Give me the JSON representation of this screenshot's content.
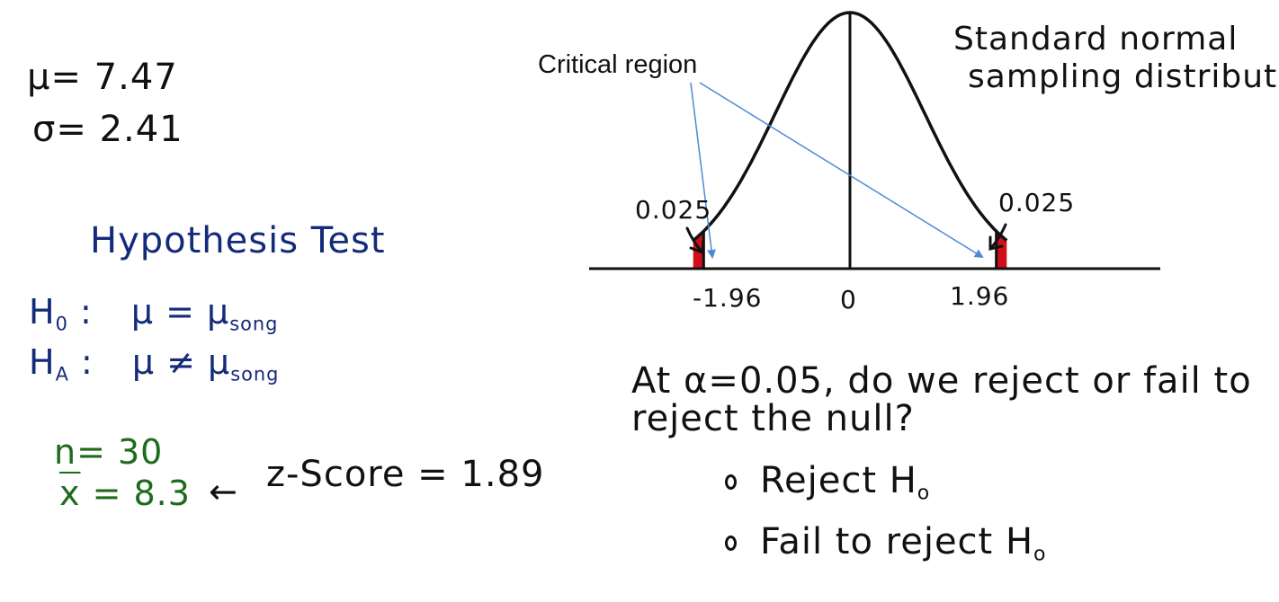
{
  "given": {
    "mu": "μ= 7.47",
    "sigma": "σ= 2.41"
  },
  "hypothesis": {
    "title": "Hypothesis Test",
    "h0_label": "H",
    "h0_sub": "0",
    "h0_colon": ":",
    "h0_expr": "μ = μ",
    "h0_expr_sub": "song",
    "ha_label": "H",
    "ha_sub": "A",
    "ha_colon": ":",
    "ha_expr": "μ ≠ μ",
    "ha_expr_sub": "song"
  },
  "sample": {
    "n": "n= 30",
    "xbar_symbol": "x",
    "xbar_value": " = 8.3",
    "arrow": "←",
    "zscore": "z-Score = 1.89"
  },
  "diagram": {
    "title_line1": "Standard normal",
    "title_line2": "sampling distribution",
    "critical_label": "Critical region",
    "left_tail_area": "0.025",
    "right_tail_area": "0.025",
    "left_tick": "-1.96",
    "center_tick": "0",
    "right_tick": "1.96",
    "critical_z": 1.96,
    "tail_color": "#d10f1b",
    "arrow_color": "#4a8bd6"
  },
  "question": {
    "line1": "At α=0.05, do we reject or fail to",
    "line2": "reject the null?",
    "options": [
      {
        "label": "Reject H",
        "sub": "o"
      },
      {
        "label": "Fail to reject H",
        "sub": "o"
      }
    ]
  }
}
